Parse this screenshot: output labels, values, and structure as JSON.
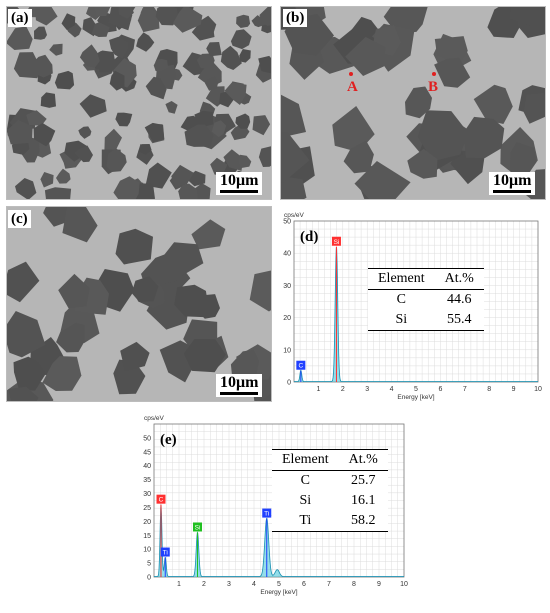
{
  "panels": {
    "a": {
      "label": "(a)",
      "scale": "10μm"
    },
    "b": {
      "label": "(b)",
      "scale": "10μm",
      "points": [
        "A",
        "B"
      ]
    },
    "c": {
      "label": "(c)",
      "scale": "10μm"
    },
    "d": {
      "label": "(d)",
      "y_unit": "cps/eV",
      "x_label": "Energy [keV]"
    },
    "e": {
      "label": "(e)",
      "y_unit": "cps/eV",
      "x_label": "Energy [keV]"
    }
  },
  "chart_data": [
    {
      "id": "d",
      "type": "line",
      "title": "(d)",
      "xlabel": "Energy [keV]",
      "ylabel": "cps/eV",
      "xlim": [
        0,
        10
      ],
      "ylim": [
        0,
        50
      ],
      "x_ticks": [
        1,
        2,
        3,
        4,
        5,
        6,
        7,
        8,
        9,
        10
      ],
      "y_ticks": [
        0,
        10,
        20,
        30,
        40,
        50
      ],
      "grid": true,
      "peaks": [
        {
          "element": "C",
          "energy": 0.28,
          "height": 3.5,
          "color": "#2040ff"
        },
        {
          "element": "Si",
          "energy": 1.74,
          "height": 42,
          "color": "#ff3030"
        }
      ],
      "table": {
        "headers": [
          "Element",
          "At.%"
        ],
        "rows": [
          [
            "C",
            "44.6"
          ],
          [
            "Si",
            "55.4"
          ]
        ]
      }
    },
    {
      "id": "e",
      "type": "line",
      "title": "(e)",
      "xlabel": "Energy [keV]",
      "ylabel": "cps/eV",
      "xlim": [
        0,
        10
      ],
      "ylim": [
        0,
        55
      ],
      "x_ticks": [
        1,
        2,
        3,
        4,
        5,
        6,
        7,
        8,
        9,
        10
      ],
      "y_ticks": [
        0,
        5,
        10,
        15,
        20,
        25,
        30,
        35,
        40,
        45,
        50
      ],
      "grid": true,
      "peaks": [
        {
          "element": "C",
          "energy": 0.28,
          "height": 26,
          "color": "#ff3030"
        },
        {
          "element": "Ti",
          "energy": 0.45,
          "height": 7,
          "color": "#2040ff"
        },
        {
          "element": "Si",
          "energy": 1.74,
          "height": 16,
          "color": "#20c020"
        },
        {
          "element": "Ti",
          "energy": 4.51,
          "height": 21,
          "color": "#2040ff"
        },
        {
          "element": "",
          "energy": 4.93,
          "height": 2.5,
          "color": "#20a0c0"
        }
      ],
      "table": {
        "headers": [
          "Element",
          "At.%"
        ],
        "rows": [
          [
            "C",
            "25.7"
          ],
          [
            "Si",
            "16.1"
          ],
          [
            "Ti",
            "58.2"
          ]
        ]
      }
    }
  ]
}
